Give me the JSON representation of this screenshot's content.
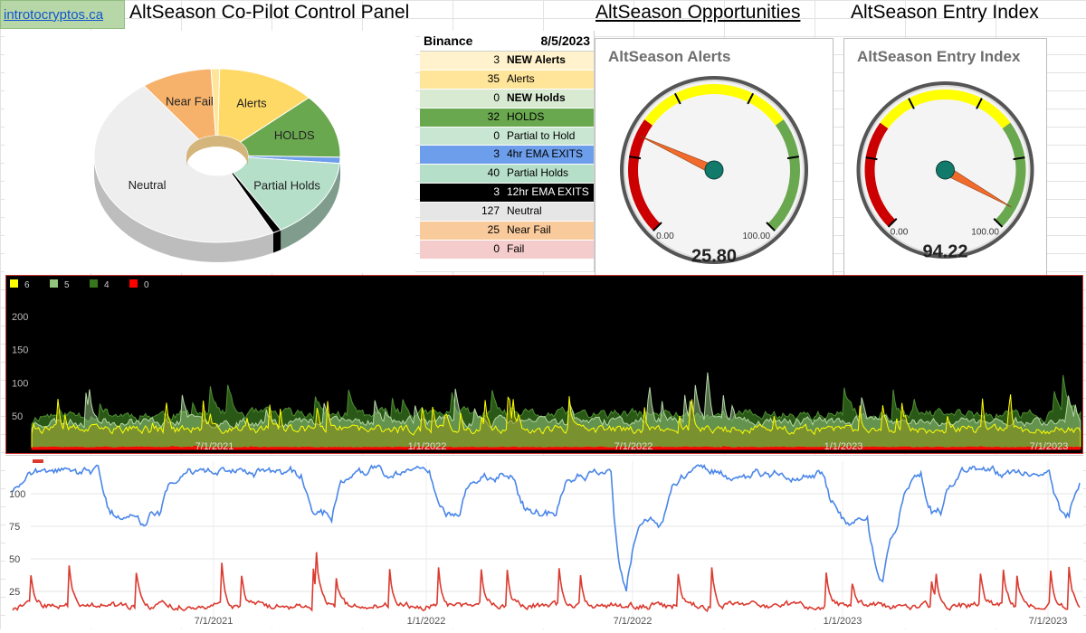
{
  "header": {
    "link": "introtocryptos.ca",
    "title": "AltSeason Co-Pilot Control Panel",
    "opportunities": "AltSeason Opportunities",
    "entry_index": "AltSeason Entry Index"
  },
  "pie": {
    "slices": [
      {
        "label": "Alerts",
        "value": 35,
        "color": "#ffd966"
      },
      {
        "label": "HOLDS",
        "value": 32,
        "color": "#6aa84f"
      },
      {
        "label": "",
        "value": 3,
        "color": "#6d9eeb"
      },
      {
        "label": "Partial Holds",
        "value": 40,
        "color": "#b6dfc9"
      },
      {
        "label": "",
        "value": 3,
        "color": "#000000"
      },
      {
        "label": "Neutral",
        "value": 127,
        "color": "#eeeeee"
      },
      {
        "label": "Near Fail",
        "value": 25,
        "color": "#f6b26b"
      },
      {
        "label": "",
        "value": 3,
        "color": "#ffe599"
      }
    ]
  },
  "table": {
    "exchange": "Binance",
    "date": "8/5/2023",
    "rows": [
      {
        "n": "3",
        "label": "NEW Alerts",
        "bg": "#fff2cc",
        "bold": true
      },
      {
        "n": "35",
        "label": "Alerts",
        "bg": "#ffe599",
        "bold": false
      },
      {
        "n": "0",
        "label": "NEW Holds",
        "bg": "#d9ead3",
        "bold": true
      },
      {
        "n": "32",
        "label": "HOLDS",
        "bg": "#6aa84f",
        "bold": false
      },
      {
        "n": "0",
        "label": "Partial to Hold",
        "bg": "#c8e6d2",
        "bold": false
      },
      {
        "n": "3",
        "label": "4hr EMA EXITS",
        "bg": "#6d9eeb",
        "bold": false
      },
      {
        "n": "40",
        "label": "Partial Holds",
        "bg": "#b6dfc9",
        "bold": false
      },
      {
        "n": "3",
        "label": "12hr EMA EXITS",
        "bg": "#000000",
        "bold": false,
        "fg": "#ffffff"
      },
      {
        "n": "127",
        "label": "Neutral",
        "bg": "#e6e6e6",
        "bold": false
      },
      {
        "n": "25",
        "label": "Near Fail",
        "bg": "#f9cb9c",
        "bold": false
      },
      {
        "n": "0",
        "label": "Fail",
        "bg": "#f4cccc",
        "bold": false
      }
    ]
  },
  "gauges": [
    {
      "title": "AltSeason Alerts",
      "value": 25.8,
      "display": "25.80",
      "min": "0.00",
      "max": "100.00"
    },
    {
      "title": "AltSeason Entry Index",
      "value": 94.22,
      "display": "94.22",
      "min": "0.00",
      "max": "100.00"
    }
  ],
  "chart_data": [
    {
      "type": "area",
      "legend": [
        {
          "name": "6",
          "color": "#ffff00"
        },
        {
          "name": "5",
          "color": "#93c47d"
        },
        {
          "name": "4",
          "color": "#38761d"
        },
        {
          "name": "0",
          "color": "#ff0000"
        }
      ],
      "yticks": [
        50,
        100,
        150,
        200
      ],
      "ylim": [
        0,
        250
      ],
      "xticks": [
        "7/1/2021",
        "1/1/2022",
        "7/1/2022",
        "1/1/2023",
        "7/1/2023"
      ],
      "background": "#000000"
    },
    {
      "type": "line",
      "series": [
        {
          "color": "#4a86e8"
        },
        {
          "color": "#db3a2f"
        }
      ],
      "yticks": [
        25,
        50,
        75,
        100
      ],
      "ylim": [
        0,
        125
      ],
      "xticks": [
        "7/1/2021",
        "1/1/2022",
        "7/1/2022",
        "1/1/2023",
        "7/1/2023"
      ]
    }
  ]
}
